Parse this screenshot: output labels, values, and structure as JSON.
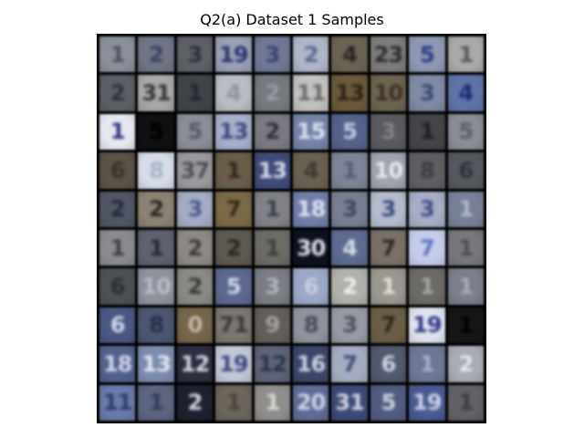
{
  "figure": {
    "title": "Q2(a) Dataset 1 Samples"
  },
  "sample_grid": {
    "rows": 10,
    "columns": 10,
    "samples": [
      {
        "bg": "#8b8f99",
        "fg": "#4a5066",
        "glyph": "1"
      },
      {
        "bg": "#6f7585",
        "fg": "#3b4260",
        "glyph": "2"
      },
      {
        "bg": "#5e6068",
        "fg": "#2c2f3a",
        "glyph": "3"
      },
      {
        "bg": "#9aa0b4",
        "fg": "#2a3170",
        "glyph": "19"
      },
      {
        "bg": "#707896",
        "fg": "#394273",
        "glyph": "3"
      },
      {
        "bg": "#aeb6c8",
        "fg": "#5a6790",
        "glyph": "2"
      },
      {
        "bg": "#6b6352",
        "fg": "#26241f",
        "glyph": "4"
      },
      {
        "bg": "#7e7d7a",
        "fg": "#2a2a34",
        "glyph": "23"
      },
      {
        "bg": "#8e98b2",
        "fg": "#2b3a8a",
        "glyph": "5"
      },
      {
        "bg": "#a9aaa7",
        "fg": "#55575a",
        "glyph": "1"
      },
      {
        "bg": "#5b5f66",
        "fg": "#2c3038",
        "glyph": "2"
      },
      {
        "bg": "#a8a8a8",
        "fg": "#333338",
        "glyph": "31"
      },
      {
        "bg": "#404449",
        "fg": "#22262a",
        "glyph": "1"
      },
      {
        "bg": "#b8bcc4",
        "fg": "#8d93a0",
        "glyph": "4"
      },
      {
        "bg": "#777980",
        "fg": "#9a9ca4",
        "glyph": "2"
      },
      {
        "bg": "#c4c2c0",
        "fg": "#6a6868",
        "glyph": "11"
      },
      {
        "bg": "#6a5a3c",
        "fg": "#2a2214",
        "glyph": "13"
      },
      {
        "bg": "#6d6450",
        "fg": "#3a3020",
        "glyph": "10"
      },
      {
        "bg": "#7f8aa4",
        "fg": "#3b4872",
        "glyph": "3"
      },
      {
        "bg": "#5f73a8",
        "fg": "#1b2c70",
        "glyph": "4"
      },
      {
        "bg": "#e6e8f0",
        "fg": "#2b3384",
        "glyph": "1"
      },
      {
        "bg": "#101012",
        "fg": "#000000",
        "glyph": "5"
      },
      {
        "bg": "#8a8e98",
        "fg": "#55596a",
        "glyph": "5"
      },
      {
        "bg": "#a6b0c8",
        "fg": "#3b4782",
        "glyph": "13"
      },
      {
        "bg": "#7a7a82",
        "fg": "#2d2f3a",
        "glyph": "2"
      },
      {
        "bg": "#7583a8",
        "fg": "#dde3f0",
        "glyph": "15"
      },
      {
        "bg": "#54628a",
        "fg": "#c7cce0",
        "glyph": "5"
      },
      {
        "bg": "#5a5b60",
        "fg": "#838489",
        "glyph": "3"
      },
      {
        "bg": "#444548",
        "fg": "#1c1d20",
        "glyph": "1"
      },
      {
        "bg": "#8a8d96",
        "fg": "#5c5e6c",
        "glyph": "5"
      },
      {
        "bg": "#5b5347",
        "fg": "#39332a",
        "glyph": "6"
      },
      {
        "bg": "#d6dce8",
        "fg": "#a9b2c7",
        "glyph": "8"
      },
      {
        "bg": "#9a9a9c",
        "fg": "#4a4d58",
        "glyph": "37"
      },
      {
        "bg": "#6a5e4a",
        "fg": "#2f2820",
        "glyph": "1"
      },
      {
        "bg": "#3f4b78",
        "fg": "#d7dcea",
        "glyph": "13"
      },
      {
        "bg": "#6a6050",
        "fg": "#403830",
        "glyph": "4"
      },
      {
        "bg": "#7d8496",
        "fg": "#535b70",
        "glyph": "1"
      },
      {
        "bg": "#9fa3ae",
        "fg": "#e8eaf0",
        "glyph": "10"
      },
      {
        "bg": "#5e5f62",
        "fg": "#3c3d42",
        "glyph": "8"
      },
      {
        "bg": "#55585e",
        "fg": "#2f3238",
        "glyph": "6"
      },
      {
        "bg": "#505664",
        "fg": "#242a3a",
        "glyph": "2"
      },
      {
        "bg": "#8c8273",
        "fg": "#2a241e",
        "glyph": "2"
      },
      {
        "bg": "#a3acc4",
        "fg": "#4a5890",
        "glyph": "3"
      },
      {
        "bg": "#7a6a48",
        "fg": "#33291a",
        "glyph": "7"
      },
      {
        "bg": "#808287",
        "fg": "#3b3e48",
        "glyph": "1"
      },
      {
        "bg": "#6f7ea8",
        "fg": "#dfe4f2",
        "glyph": "18"
      },
      {
        "bg": "#787e94",
        "fg": "#3c4460",
        "glyph": "3"
      },
      {
        "bg": "#b3bbcc",
        "fg": "#3a4880",
        "glyph": "3"
      },
      {
        "bg": "#a6adc4",
        "fg": "#3f4c86",
        "glyph": "3"
      },
      {
        "bg": "#778097",
        "fg": "#b2b8c8",
        "glyph": "1"
      },
      {
        "bg": "#8a8b8f",
        "fg": "#3b3d46",
        "glyph": "1"
      },
      {
        "bg": "#5e6270",
        "fg": "#242836",
        "glyph": "1"
      },
      {
        "bg": "#8c8a82",
        "fg": "#3c3a36",
        "glyph": "2"
      },
      {
        "bg": "#5e5a50",
        "fg": "#2a2622",
        "glyph": "2"
      },
      {
        "bg": "#6d6b66",
        "fg": "#403e3a",
        "glyph": "1"
      },
      {
        "bg": "#0e1020",
        "fg": "#e0e4f0",
        "glyph": "30"
      },
      {
        "bg": "#5e6b90",
        "fg": "#d8ddec",
        "glyph": "4"
      },
      {
        "bg": "#7a7068",
        "fg": "#2c2824",
        "glyph": "7"
      },
      {
        "bg": "#c4ccea",
        "fg": "#5d73c2",
        "glyph": "7"
      },
      {
        "bg": "#77787c",
        "fg": "#4c4e54",
        "glyph": "1"
      },
      {
        "bg": "#4d5055",
        "fg": "#2a2d32",
        "glyph": "6"
      },
      {
        "bg": "#8d939e",
        "fg": "#b8bdc6",
        "glyph": "10"
      },
      {
        "bg": "#8a8986",
        "fg": "#3a3938",
        "glyph": "2"
      },
      {
        "bg": "#5c6890",
        "fg": "#d3d8e8",
        "glyph": "5"
      },
      {
        "bg": "#7a7d84",
        "fg": "#b2b5bc",
        "glyph": "3"
      },
      {
        "bg": "#9ba8c8",
        "fg": "#c8d0e4",
        "glyph": "6"
      },
      {
        "bg": "#b0b0ac",
        "fg": "#f0f0ee",
        "glyph": "2"
      },
      {
        "bg": "#9a978f",
        "fg": "#e4e2dc",
        "glyph": "1"
      },
      {
        "bg": "#6c6a66",
        "fg": "#a8a6a0",
        "glyph": "1"
      },
      {
        "bg": "#7a7f8c",
        "fg": "#a9adb8",
        "glyph": "1"
      },
      {
        "bg": "#4a5784",
        "fg": "#d5daea",
        "glyph": "6"
      },
      {
        "bg": "#4c5670",
        "fg": "#26304a",
        "glyph": "8"
      },
      {
        "bg": "#75654a",
        "fg": "#c6bcac",
        "glyph": "0"
      },
      {
        "bg": "#7c7670",
        "fg": "#3d3934",
        "glyph": "71"
      },
      {
        "bg": "#625e58",
        "fg": "#a6a39e",
        "glyph": "9"
      },
      {
        "bg": "#8f939e",
        "fg": "#45495a",
        "glyph": "8"
      },
      {
        "bg": "#959aa4",
        "fg": "#4c5060",
        "glyph": "3"
      },
      {
        "bg": "#6b5e46",
        "fg": "#2c251a",
        "glyph": "7"
      },
      {
        "bg": "#dfe2ee",
        "fg": "#2e3788",
        "glyph": "19"
      },
      {
        "bg": "#161616",
        "fg": "#000000",
        "glyph": "1"
      },
      {
        "bg": "#52618c",
        "fg": "#d4d9ea",
        "glyph": "18"
      },
      {
        "bg": "#7c8cb0",
        "fg": "#e4e8f2",
        "glyph": "13"
      },
      {
        "bg": "#2a2e3e",
        "fg": "#d6d8e2",
        "glyph": "12"
      },
      {
        "bg": "#c2c8d6",
        "fg": "#3e4680",
        "glyph": "19"
      },
      {
        "bg": "#5e6478",
        "fg": "#2c3248",
        "glyph": "12"
      },
      {
        "bg": "#3c4668",
        "fg": "#cfd4e4",
        "glyph": "16"
      },
      {
        "bg": "#a4acc0",
        "fg": "#3f4a78",
        "glyph": "7"
      },
      {
        "bg": "#50596e",
        "fg": "#d2d6e0",
        "glyph": "6"
      },
      {
        "bg": "#6d7895",
        "fg": "#a8b0c6",
        "glyph": "1"
      },
      {
        "bg": "#a9acb4",
        "fg": "#e6e8ec",
        "glyph": "2"
      },
      {
        "bg": "#6a7aa8",
        "fg": "#2c3a70",
        "glyph": "11"
      },
      {
        "bg": "#5c6480",
        "fg": "#323a56",
        "glyph": "1"
      },
      {
        "bg": "#1e2030",
        "fg": "#d6d8e2",
        "glyph": "2"
      },
      {
        "bg": "#6c655c",
        "fg": "#4a443c",
        "glyph": "1"
      },
      {
        "bg": "#8f8e8c",
        "fg": "#dadad6",
        "glyph": "1"
      },
      {
        "bg": "#606c96",
        "fg": "#cfd5e8",
        "glyph": "20"
      },
      {
        "bg": "#3e4a76",
        "fg": "#d2d7e8",
        "glyph": "31"
      },
      {
        "bg": "#525c80",
        "fg": "#cdd2e4",
        "glyph": "5"
      },
      {
        "bg": "#4a5a90",
        "fg": "#cfd5ea",
        "glyph": "19"
      },
      {
        "bg": "#606266",
        "fg": "#3a3c40",
        "glyph": "1"
      }
    ]
  }
}
